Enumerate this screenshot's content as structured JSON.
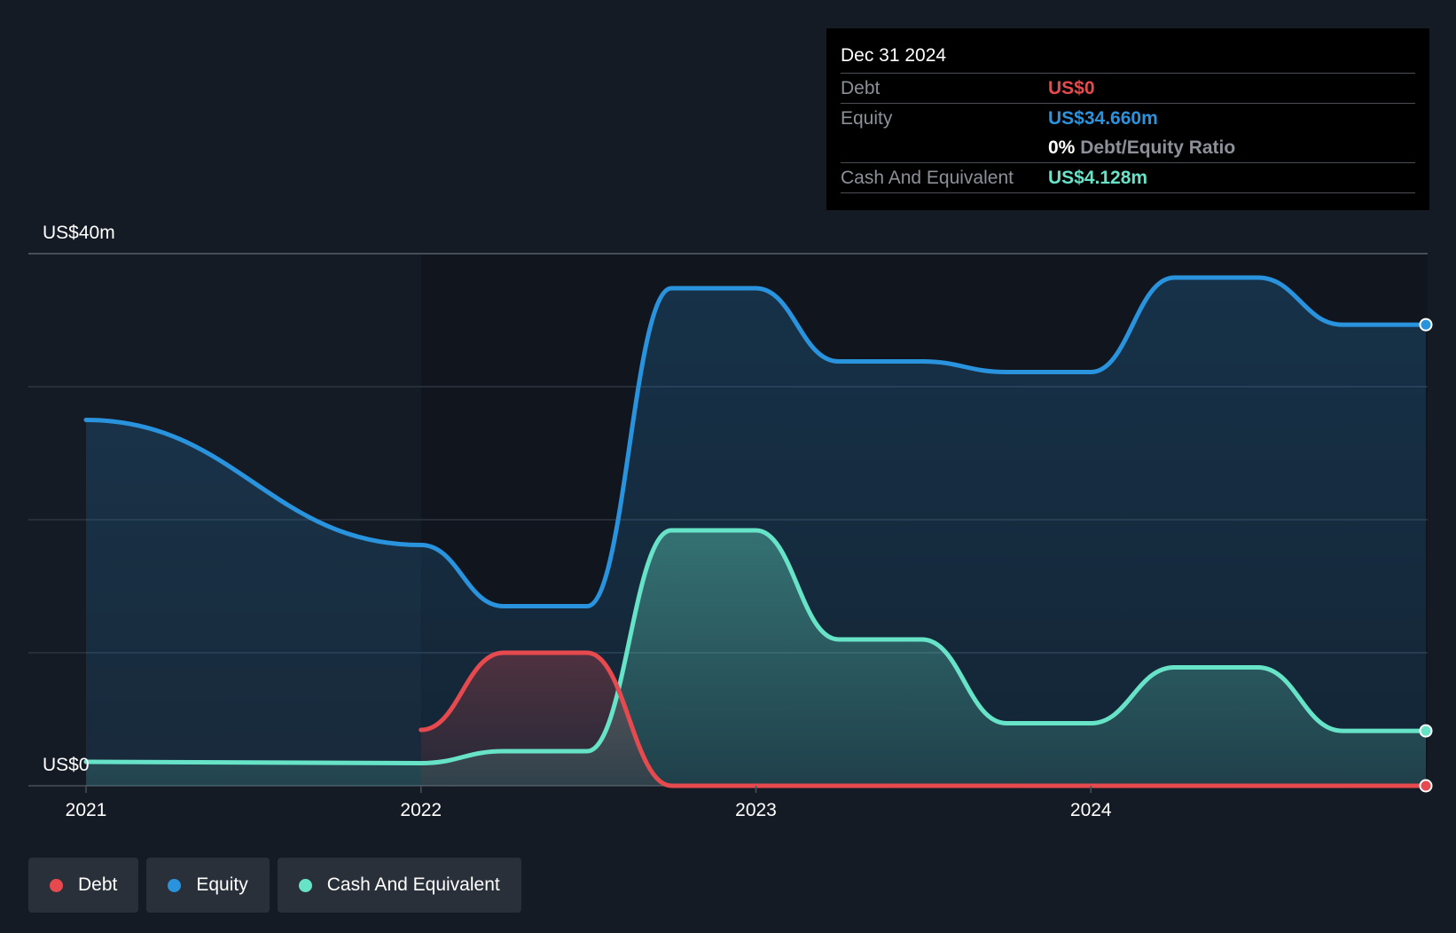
{
  "tooltip": {
    "date": "Dec 31 2024",
    "rows": {
      "debt": {
        "label": "Debt",
        "value": "US$0"
      },
      "equity": {
        "label": "Equity",
        "value": "US$34.660m"
      },
      "ratio": {
        "value": "0%",
        "label": "Debt/Equity Ratio"
      },
      "cash": {
        "label": "Cash And Equivalent",
        "value": "US$4.128m"
      }
    }
  },
  "legend": {
    "debt": "Debt",
    "equity": "Equity",
    "cash": "Cash And Equivalent"
  },
  "colors": {
    "debt": "#e64a4f",
    "equity": "#2a93de",
    "cash": "#67e3c8",
    "background": "#151b24"
  },
  "chart_data": {
    "type": "area",
    "title": "",
    "xlabel": "",
    "ylabel": "",
    "y_top_label": "US$40m",
    "y_bottom_label": "US$0",
    "ylim": [
      0,
      40
    ],
    "x_ticks": [
      "2021",
      "2022",
      "2023",
      "2024"
    ],
    "highlight_after": "2022-01-01",
    "series": [
      {
        "name": "Debt",
        "key": "debt",
        "points": [
          [
            "2022-01-01",
            4.2
          ],
          [
            "2022-04-01",
            10
          ],
          [
            "2022-07-01",
            10
          ],
          [
            "2022-10-01",
            0
          ],
          [
            "2023-01-01",
            0
          ],
          [
            "2023-04-01",
            0
          ],
          [
            "2023-07-01",
            0
          ],
          [
            "2023-10-01",
            0
          ],
          [
            "2024-01-01",
            0
          ],
          [
            "2024-04-01",
            0
          ],
          [
            "2024-07-01",
            0
          ],
          [
            "2024-10-01",
            0
          ],
          [
            "2024-12-31",
            0
          ]
        ]
      },
      {
        "name": "Equity",
        "key": "equity",
        "points": [
          [
            "2021-01-01",
            27.5
          ],
          [
            "2022-01-01",
            18.1
          ],
          [
            "2022-04-01",
            13.5
          ],
          [
            "2022-07-01",
            13.5
          ],
          [
            "2022-10-01",
            37.4
          ],
          [
            "2023-01-01",
            37.4
          ],
          [
            "2023-04-01",
            31.9
          ],
          [
            "2023-07-01",
            31.9
          ],
          [
            "2023-10-01",
            31.1
          ],
          [
            "2024-01-01",
            31.1
          ],
          [
            "2024-04-01",
            38.2
          ],
          [
            "2024-07-01",
            38.2
          ],
          [
            "2024-10-01",
            34.66
          ],
          [
            "2024-12-31",
            34.66
          ]
        ]
      },
      {
        "name": "Cash And Equivalent",
        "key": "cash",
        "points": [
          [
            "2021-01-01",
            1.8
          ],
          [
            "2022-01-01",
            1.7
          ],
          [
            "2022-04-01",
            2.6
          ],
          [
            "2022-07-01",
            2.6
          ],
          [
            "2022-10-01",
            19.2
          ],
          [
            "2023-01-01",
            19.2
          ],
          [
            "2023-04-01",
            11.0
          ],
          [
            "2023-07-01",
            11.0
          ],
          [
            "2023-10-01",
            4.7
          ],
          [
            "2024-01-01",
            4.7
          ],
          [
            "2024-04-01",
            8.9
          ],
          [
            "2024-07-01",
            8.9
          ],
          [
            "2024-10-01",
            4.128
          ],
          [
            "2024-12-31",
            4.128
          ]
        ]
      }
    ]
  }
}
